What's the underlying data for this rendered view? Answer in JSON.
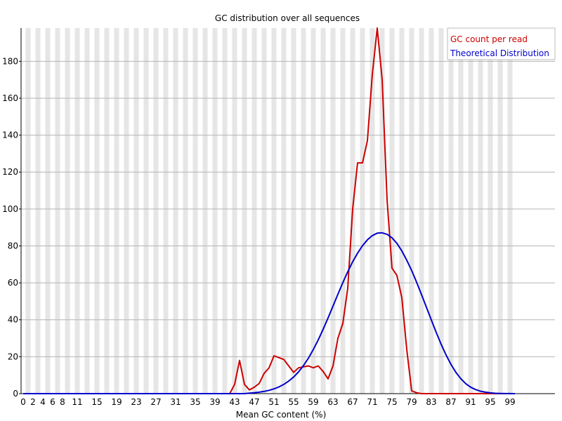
{
  "chart_data": {
    "type": "line",
    "title": "GC distribution over all sequences",
    "xlabel": "Mean GC content (%)",
    "ylabel": "",
    "ylim": [
      0,
      198
    ],
    "xlim": [
      0,
      100
    ],
    "grid": true,
    "legend_position": "top-right",
    "x_tick_labels": [
      "0",
      "2",
      "4",
      "6",
      "8",
      "11",
      "15",
      "19",
      "23",
      "27",
      "31",
      "35",
      "39",
      "43",
      "47",
      "51",
      "55",
      "59",
      "63",
      "67",
      "71",
      "75",
      "79",
      "83",
      "87",
      "91",
      "95",
      "99"
    ],
    "y_tick_labels": [
      "0",
      "20",
      "40",
      "60",
      "80",
      "100",
      "120",
      "140",
      "160",
      "180"
    ],
    "x": [
      0,
      1,
      2,
      3,
      4,
      5,
      6,
      7,
      8,
      9,
      10,
      11,
      12,
      13,
      14,
      15,
      16,
      17,
      18,
      19,
      20,
      21,
      22,
      23,
      24,
      25,
      26,
      27,
      28,
      29,
      30,
      31,
      32,
      33,
      34,
      35,
      36,
      37,
      38,
      39,
      40,
      41,
      42,
      43,
      44,
      45,
      46,
      47,
      48,
      49,
      50,
      51,
      52,
      53,
      54,
      55,
      56,
      57,
      58,
      59,
      60,
      61,
      62,
      63,
      64,
      65,
      66,
      67,
      68,
      69,
      70,
      71,
      72,
      73,
      74,
      75,
      76,
      77,
      78,
      79,
      80,
      81,
      82,
      83,
      84,
      85,
      86,
      87,
      88,
      89,
      90,
      91,
      92,
      93,
      94,
      95,
      96,
      97,
      98,
      99,
      100
    ],
    "series": [
      {
        "name": "GC count per read",
        "color": "#cc0000",
        "values": [
          0,
          0,
          0,
          0,
          0,
          0,
          0,
          0,
          0,
          0,
          0,
          0,
          0,
          0,
          0,
          0,
          0,
          0,
          0,
          0,
          0,
          0,
          0,
          0,
          0,
          0,
          0,
          0,
          0,
          0,
          0,
          0,
          0,
          0,
          0,
          0,
          0,
          0,
          0,
          0,
          0,
          0,
          0,
          5,
          18,
          5,
          2,
          3.5,
          5.5,
          11,
          14,
          20.5,
          19.5,
          18.5,
          15,
          11.5,
          14,
          14.5,
          15,
          14,
          15,
          12,
          8,
          15,
          30,
          38,
          57,
          100,
          125,
          125,
          137,
          173,
          198,
          170,
          105,
          68,
          64,
          52,
          24,
          1.5,
          0.5,
          0,
          0,
          0,
          0,
          0,
          0,
          0,
          0,
          0,
          0,
          0,
          0,
          0,
          0,
          0,
          0,
          0,
          0,
          0,
          0
        ]
      },
      {
        "name": "Theoretical Distribution",
        "color": "#0000cc",
        "values": [
          0,
          0,
          0,
          0,
          0,
          0,
          0,
          0,
          0,
          0,
          0,
          0,
          0,
          0,
          0,
          0,
          0,
          0,
          0,
          0,
          0,
          0,
          0,
          0,
          0,
          0,
          0,
          0,
          0,
          0,
          0,
          0,
          0,
          0,
          0,
          0,
          0,
          0,
          0,
          0,
          0,
          0,
          0,
          0,
          0,
          0,
          0.3,
          0.5,
          0.8,
          1.2,
          1.8,
          2.6,
          3.6,
          5.0,
          6.8,
          9.0,
          11.8,
          15.2,
          19.2,
          23.9,
          29.1,
          34.9,
          41.0,
          47.4,
          53.8,
          60.1,
          66.0,
          71.4,
          76.1,
          80.1,
          83.3,
          85.6,
          86.9,
          87.1,
          86.3,
          84.4,
          81.4,
          77.3,
          72.3,
          66.7,
          60.4,
          53.7,
          46.8,
          39.9,
          33.1,
          26.7,
          20.9,
          15.8,
          11.5,
          8.1,
          5.4,
          3.5,
          2.2,
          1.3,
          0.8,
          0.4,
          0.2,
          0.1,
          0.05,
          0.02,
          0
        ]
      }
    ]
  }
}
